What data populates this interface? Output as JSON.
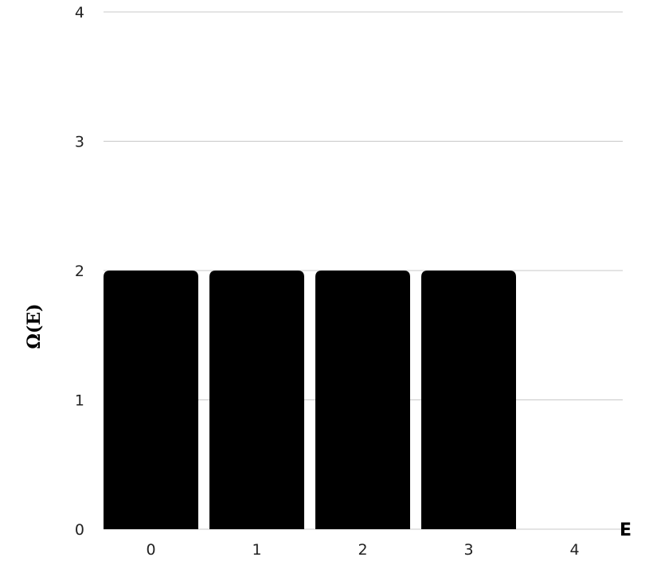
{
  "chart_data": {
    "type": "bar",
    "title": "",
    "xlabel": "E",
    "ylabel": "Ω(E)",
    "categories": [
      "0",
      "1",
      "2",
      "3",
      "4"
    ],
    "values": [
      2,
      2,
      2,
      2,
      0
    ],
    "ylim": [
      0,
      4
    ],
    "yticks": [
      "0",
      "1",
      "2",
      "3",
      "4"
    ],
    "grid": "horizontal",
    "bar_color": "#000000",
    "grid_color": "#c8c8c8"
  }
}
